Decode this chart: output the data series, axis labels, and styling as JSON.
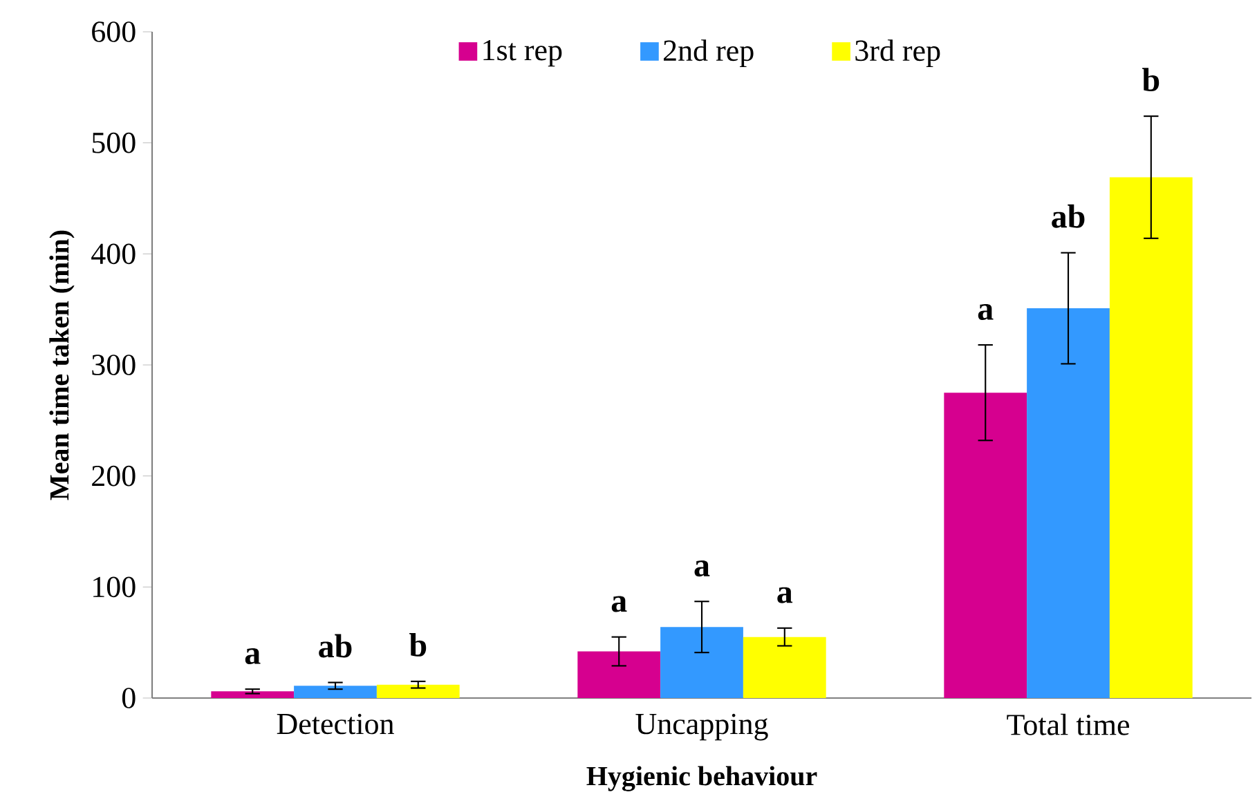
{
  "chart_data": {
    "type": "bar",
    "xlabel": "Hygienic behaviour",
    "ylabel": "Mean time taken (min)",
    "categories": [
      "Detection",
      "Uncapping",
      "Total time"
    ],
    "series": [
      {
        "name": "1st rep",
        "color": "#d6008f",
        "values": [
          6,
          42,
          275
        ],
        "errors": [
          2,
          13,
          43
        ],
        "value_labels": [
          "a",
          "a",
          "a"
        ]
      },
      {
        "name": "2nd rep",
        "color": "#3399ff",
        "values": [
          11,
          64,
          351
        ],
        "errors": [
          3,
          23,
          50
        ],
        "value_labels": [
          "ab",
          "a",
          "ab"
        ]
      },
      {
        "name": "3rd rep",
        "color": "#ffff00",
        "values": [
          12,
          55,
          469
        ],
        "errors": [
          3,
          8,
          55
        ],
        "value_labels": [
          "b",
          "a",
          "b"
        ]
      }
    ],
    "ylim": [
      0,
      600
    ],
    "yticks": [
      0,
      100,
      200,
      300,
      400,
      500,
      600
    ],
    "grid": false,
    "legend": "top"
  }
}
